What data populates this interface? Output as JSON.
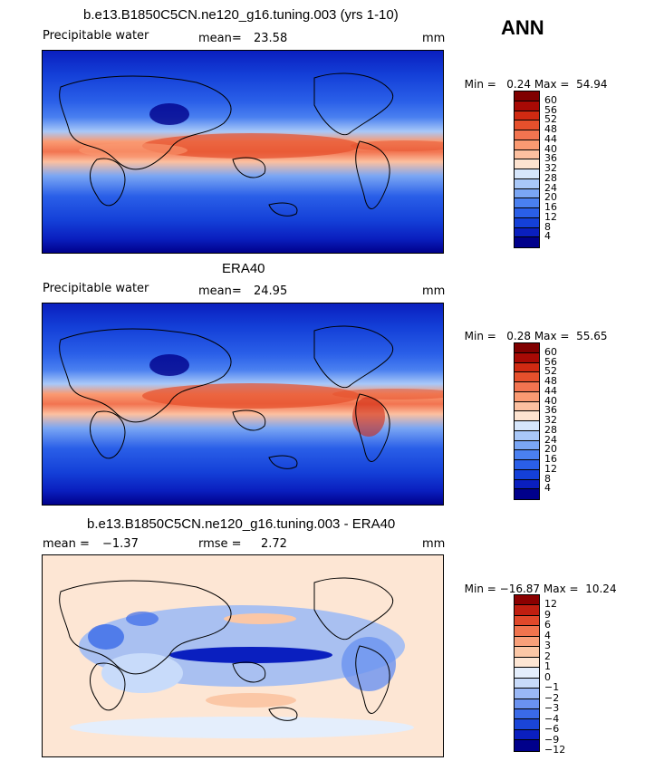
{
  "season": "ANN",
  "panels": [
    {
      "title": "b.e13.B1850C5CN.ne120_g16.tuning.003 (yrs 1-10)",
      "variable": "Precipitable water",
      "mean_label": "mean=",
      "mean_value": "23.58",
      "rmse_label": "",
      "rmse_value": "",
      "units": "mm",
      "min_label": "Min =",
      "min_value": "0.24",
      "max_label": "Max =",
      "max_value": "54.94"
    },
    {
      "title": "ERA40",
      "variable": "Precipitable water",
      "mean_label": "mean=",
      "mean_value": "24.95",
      "rmse_label": "",
      "rmse_value": "",
      "units": "mm",
      "min_label": "Min =",
      "min_value": "0.28",
      "max_label": "Max =",
      "max_value": "55.65"
    },
    {
      "title": "b.e13.B1850C5CN.ne120_g16.tuning.003 - ERA40",
      "variable": "",
      "mean_label": "mean =",
      "mean_value": "−1.37",
      "rmse_label": "rmse =",
      "rmse_value": "2.72",
      "units": "mm",
      "min_label": "Min =",
      "min_value": "−16.87",
      "max_label": "Max =",
      "max_value": "10.24"
    }
  ],
  "colorbars": {
    "abs": {
      "colors": [
        "#00008b",
        "#0a1fbf",
        "#1440d8",
        "#2a5fe8",
        "#4a80f0",
        "#7aa6f4",
        "#a9c8f8",
        "#d6e6fb",
        "#fde3d0",
        "#fcc0a0",
        "#fa9a72",
        "#f27450",
        "#e6502c",
        "#d02a12",
        "#a80a05",
        "#800000"
      ],
      "ticks": [
        "60",
        "56",
        "52",
        "48",
        "44",
        "40",
        "36",
        "32",
        "28",
        "24",
        "20",
        "16",
        "12",
        "8",
        "4"
      ]
    },
    "diff": {
      "colors": [
        "#00008b",
        "#0a1fbf",
        "#1a45d8",
        "#3a6ae8",
        "#6a92f0",
        "#9ab8f6",
        "#c8dbfa",
        "#e4eefc",
        "#fde6d4",
        "#fbc7a6",
        "#f8a07a",
        "#f0744e",
        "#e0482a",
        "#c01e10",
        "#8b0000"
      ],
      "ticks": [
        "12",
        "9",
        "6",
        "4",
        "3",
        "2",
        "1",
        "0",
        "−1",
        "−2",
        "−3",
        "−4",
        "−6",
        "−9",
        "−12"
      ]
    }
  }
}
